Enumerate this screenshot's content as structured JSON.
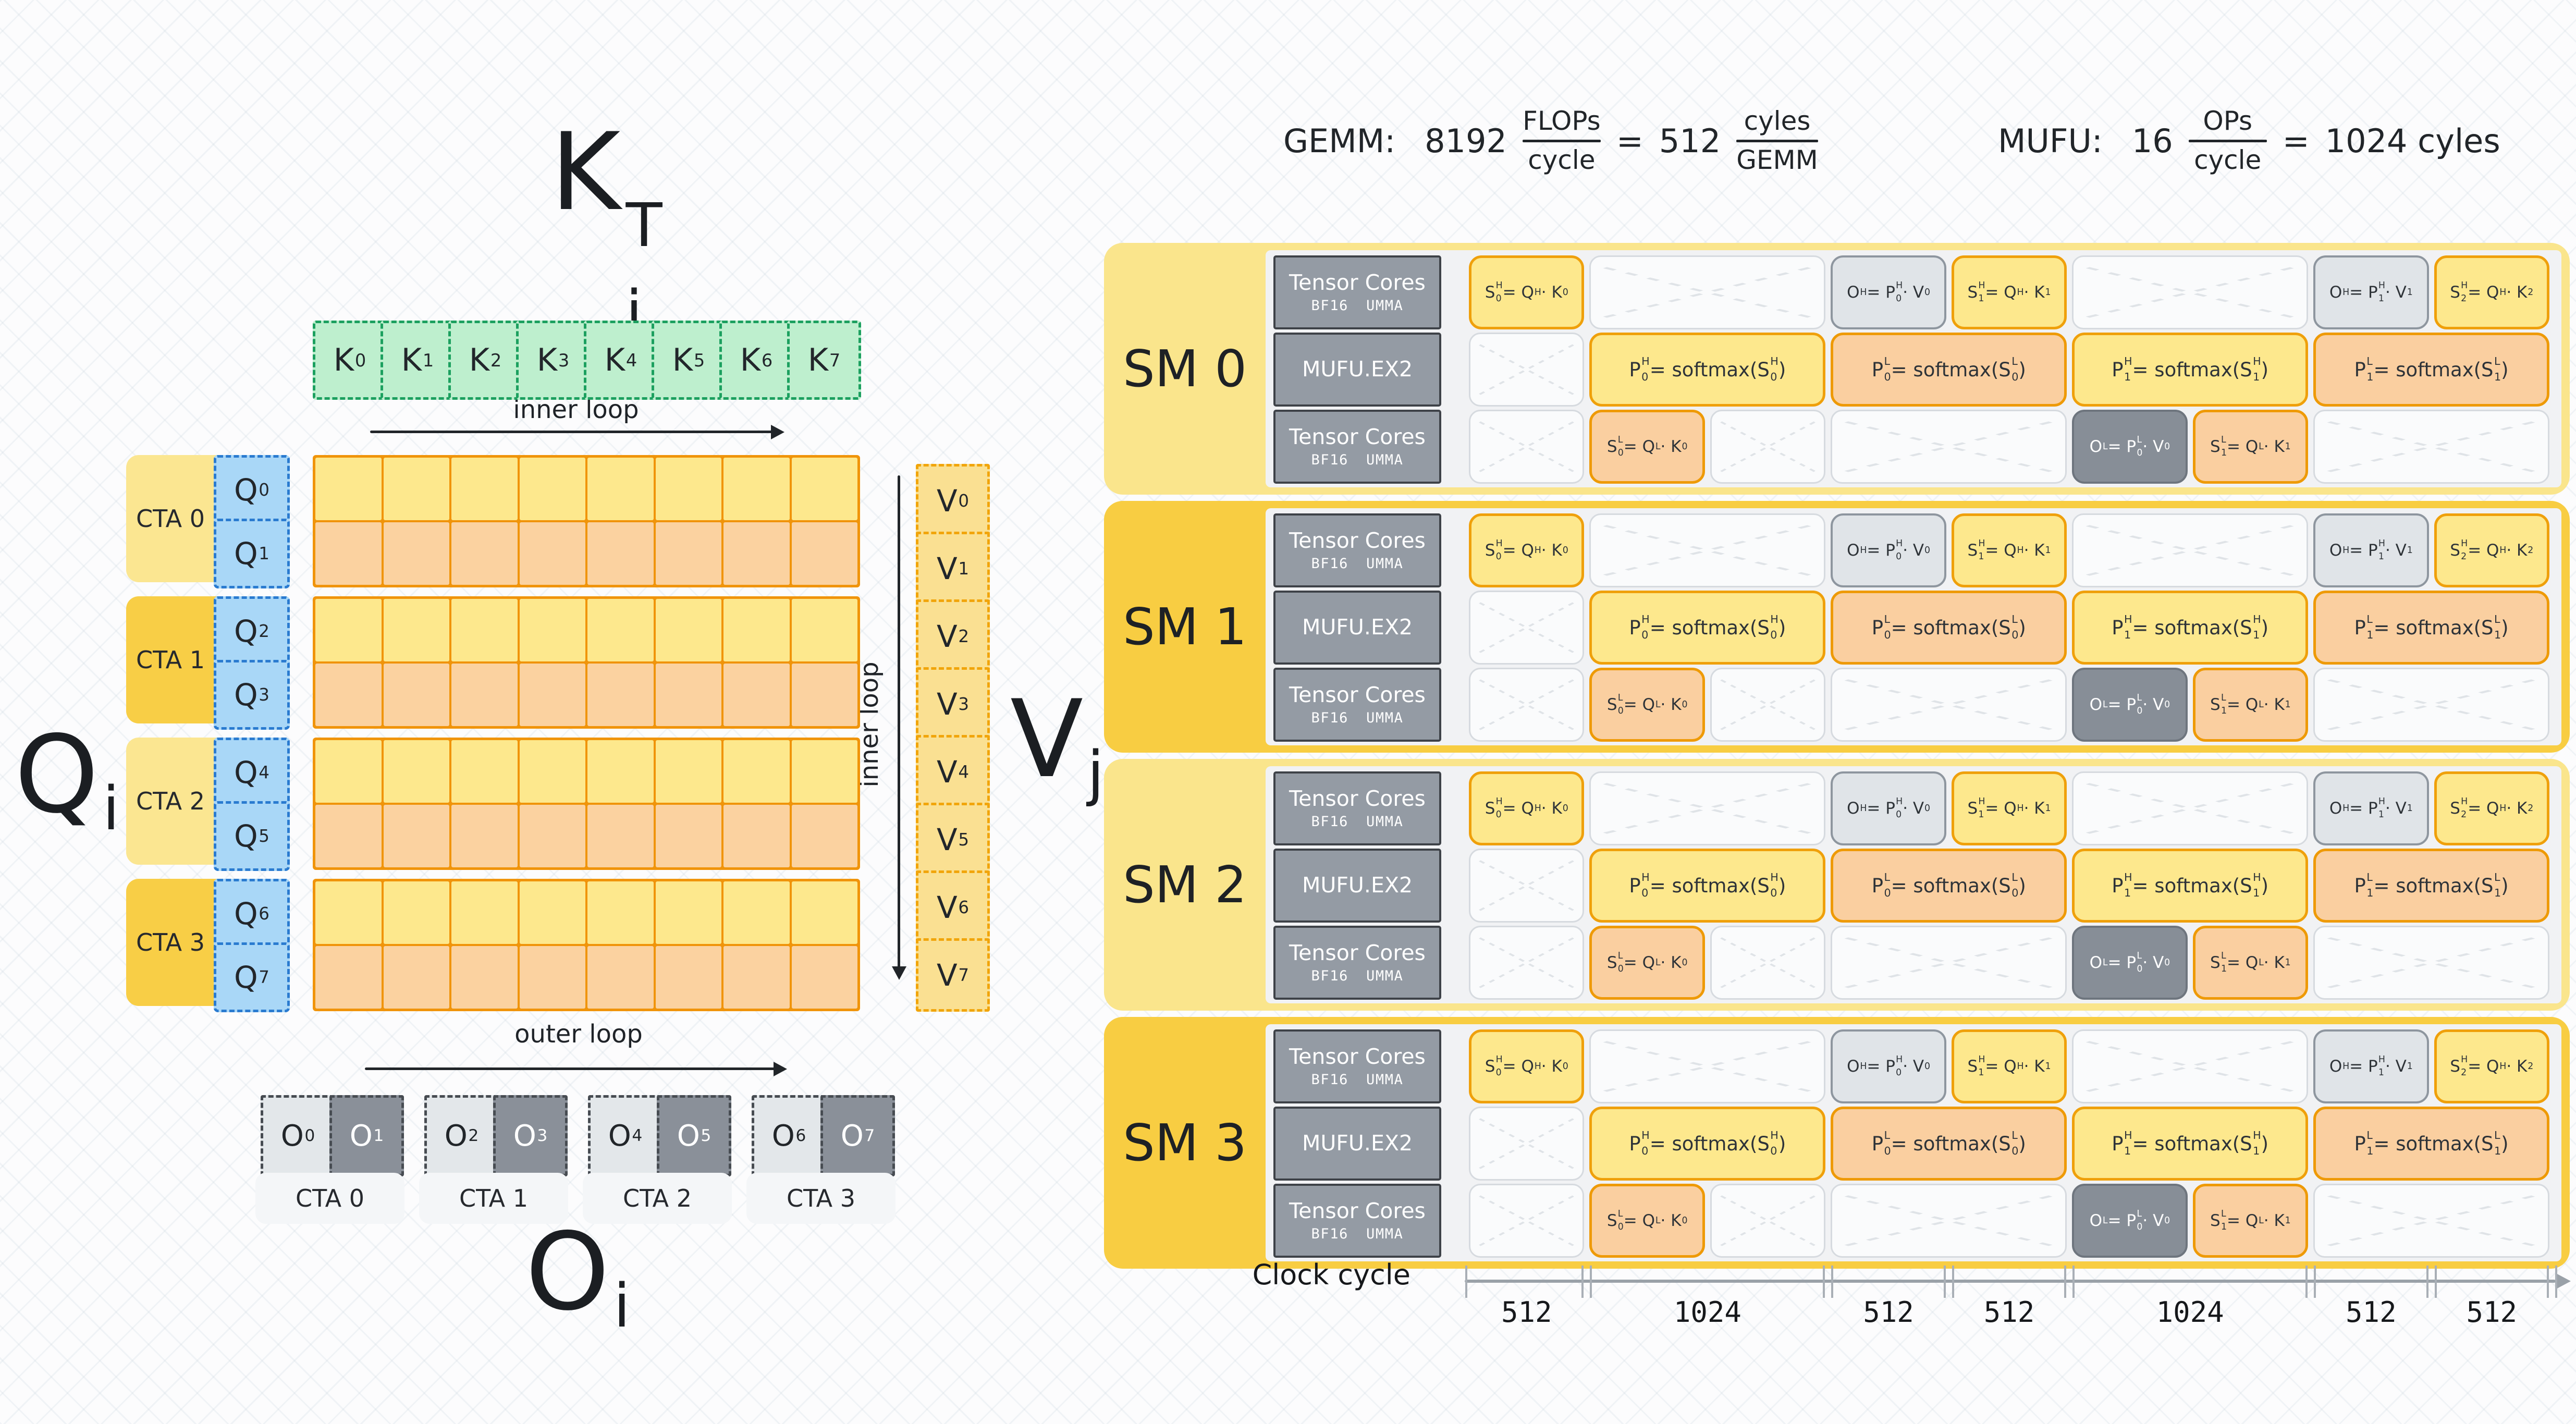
{
  "formulas": {
    "gemm": {
      "label": "GEMM:",
      "lhs": "8192",
      "frac1": {
        "num": "FLOPs",
        "den": "cycle"
      },
      "eq": "=",
      "rhs": "512",
      "frac2": {
        "num": "cyles",
        "den": "GEMM"
      }
    },
    "mufu": {
      "label": "MUFU:",
      "lhs": "16",
      "frac": {
        "num": "OPs",
        "den": "cycle"
      },
      "eq": "=",
      "rhs": "1024 cyles"
    }
  },
  "left": {
    "k_title": "K_j^T",
    "q_title": "Q_i",
    "v_title": "V_j",
    "o_title": "O_i",
    "inner_loop_top": "inner loop",
    "inner_loop_right": "inner loop",
    "outer_loop": "outer loop",
    "k_cells": [
      "K_0",
      "K_1",
      "K_2",
      "K_3",
      "K_4",
      "K_5",
      "K_6",
      "K_7"
    ],
    "q_cells": [
      "Q_0",
      "Q_1",
      "Q_2",
      "Q_3",
      "Q_4",
      "Q_5",
      "Q_6",
      "Q_7"
    ],
    "v_cells": [
      "V_0",
      "V_1",
      "V_2",
      "V_3",
      "V_4",
      "V_5",
      "V_6",
      "V_7"
    ],
    "o_cells": [
      "O_0",
      "O_1",
      "O_2",
      "O_3",
      "O_4",
      "O_5",
      "O_6",
      "O_7"
    ],
    "cta_left": [
      "CTA 0",
      "CTA 1",
      "CTA 2",
      "CTA 3"
    ],
    "cta_bottom": [
      "CTA 0",
      "CTA 1",
      "CTA 2",
      "CTA 3"
    ],
    "matrix": {
      "groups": 4,
      "rows_per_group": 2,
      "cols": 8
    }
  },
  "sms": {
    "names": [
      "SM 0",
      "SM 1",
      "SM 2",
      "SM 3"
    ],
    "row_labels": [
      {
        "line1": "Tensor Cores",
        "line2": "BF16 UMMA"
      },
      {
        "line1": "MUFU.EX2"
      },
      {
        "line1": "Tensor Cores",
        "line2": "BF16 UMMA"
      }
    ],
    "timeline_total_cycles": 4608,
    "rows": [
      {
        "cells": [
          {
            "type": "yellow",
            "start": 0,
            "end": 512,
            "t": "S_0^H = Q^H · K_0"
          },
          {
            "type": "empty",
            "start": 512,
            "end": 1536
          },
          {
            "type": "gray-light",
            "start": 1536,
            "end": 2048,
            "t": "O^H = P_0^H · V_0"
          },
          {
            "type": "yellow",
            "start": 2048,
            "end": 2560,
            "t": "S_1^H = Q^H · K_1"
          },
          {
            "type": "empty",
            "start": 2560,
            "end": 3584
          },
          {
            "type": "gray-light",
            "start": 3584,
            "end": 4096,
            "t": "O^H = P_1^H · V_1"
          },
          {
            "type": "yellow",
            "start": 4096,
            "end": 4608,
            "t": "S_2^H = Q^H · K_2"
          }
        ]
      },
      {
        "cells": [
          {
            "type": "empty",
            "start": 0,
            "end": 512
          },
          {
            "type": "yellow",
            "start": 512,
            "end": 1536,
            "t": "P_0^H = softmax(S_0^H)",
            "soft": true
          },
          {
            "type": "orange",
            "start": 1536,
            "end": 2560,
            "t": "P_0^L = softmax(S_0^L)",
            "soft": true
          },
          {
            "type": "yellow",
            "start": 2560,
            "end": 3584,
            "t": "P_1^H = softmax(S_1^H)",
            "soft": true
          },
          {
            "type": "orange",
            "start": 3584,
            "end": 4608,
            "t": "P_1^L = softmax(S_1^L)",
            "soft": true
          }
        ]
      },
      {
        "cells": [
          {
            "type": "empty",
            "start": 0,
            "end": 512
          },
          {
            "type": "orange",
            "start": 512,
            "end": 1024,
            "t": "S_0^L = Q^L · K_0"
          },
          {
            "type": "empty",
            "start": 1024,
            "end": 1536
          },
          {
            "type": "empty",
            "start": 1536,
            "end": 2560
          },
          {
            "type": "gray-dark",
            "start": 2560,
            "end": 3072,
            "t": "O^L = P_0^L · V_0"
          },
          {
            "type": "orange",
            "start": 3072,
            "end": 3584,
            "t": "S_1^L = Q^L · K_1"
          },
          {
            "type": "empty",
            "start": 3584,
            "end": 4608
          }
        ]
      }
    ]
  },
  "clock": {
    "label": "Clock cycle",
    "segments": [
      "512",
      "1024",
      "512",
      "512",
      "1024",
      "512",
      "512"
    ],
    "segment_cycles": [
      512,
      1024,
      512,
      512,
      1024,
      512,
      512
    ]
  },
  "colors": {
    "sm_light": "#FAE58C",
    "sm_gold": "#F8CD42",
    "panel": "#F1F2F4",
    "unit_label_fill": "#949BA4",
    "unit_label_border": "#3E4248",
    "cell_yellow": "#FDE88D",
    "cell_yellow_border": "#EFA00B",
    "cell_orange": "#FACFA0",
    "cell_orange_border": "#EE9A06",
    "cell_gray_light": "#E0E4E8",
    "cell_gray_dark": "#878E97",
    "empty_cell": "#FAFBFC",
    "k_green": "#BEEFCE",
    "k_border": "#1CA05F",
    "q_blue": "#A9D7F7",
    "q_border": "#2A7BD0",
    "v_yellow": "#FAE092",
    "v_border": "#F1A50B",
    "matrix_yellow": "#FDE88D",
    "matrix_orange": "#FBD2A0",
    "matrix_border": "#F0940A",
    "o_light": "#E3E7EA",
    "o_dark": "#8A9099",
    "cta_light": "#FBE691",
    "cta_gold": "#F8CE46",
    "axis": "#9AA1A8",
    "text": "#212529"
  }
}
